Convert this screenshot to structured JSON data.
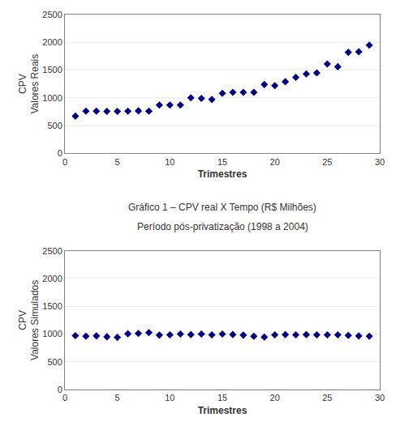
{
  "chart_data": [
    {
      "type": "scatter",
      "x": [
        1,
        2,
        3,
        4,
        5,
        6,
        7,
        8,
        9,
        10,
        11,
        12,
        13,
        14,
        15,
        16,
        17,
        18,
        19,
        20,
        21,
        22,
        23,
        24,
        25,
        26,
        27,
        28,
        29
      ],
      "values": [
        670,
        760,
        760,
        755,
        755,
        760,
        765,
        760,
        870,
        870,
        870,
        1000,
        990,
        970,
        1080,
        1100,
        1100,
        1100,
        1240,
        1220,
        1290,
        1370,
        1430,
        1450,
        1610,
        1560,
        1820,
        1830,
        1950
      ],
      "ylabel": "CPV\nValores Reais",
      "xlabel": "Trimestres",
      "ylim": [
        0,
        2500
      ],
      "yticks": [
        0,
        500,
        1000,
        1500,
        2000,
        2500
      ],
      "xlim": [
        0,
        30
      ],
      "xticks": [
        0,
        5,
        10,
        15,
        20,
        25,
        30
      ],
      "color": "#000080",
      "marker": "diamond",
      "grid": true
    },
    {
      "type": "scatter",
      "title": "Gráfico 1 – CPV real X Tempo (R$ Milhões)",
      "subtitle": "Período pós-privatização (1998 a 2004)",
      "x": [
        1,
        2,
        3,
        4,
        5,
        6,
        7,
        8,
        9,
        10,
        11,
        12,
        13,
        14,
        15,
        16,
        17,
        18,
        19,
        20,
        21,
        22,
        23,
        24,
        25,
        26,
        27,
        28,
        29
      ],
      "values": [
        970,
        960,
        965,
        950,
        940,
        1005,
        1010,
        1025,
        980,
        985,
        1000,
        990,
        1000,
        985,
        1000,
        990,
        980,
        960,
        945,
        985,
        990,
        985,
        990,
        985,
        985,
        985,
        975,
        965,
        960
      ],
      "ylabel": "CPV\nValores Simulados",
      "xlabel": "Trimestres",
      "ylim": [
        0,
        2500
      ],
      "yticks": [
        0,
        500,
        1000,
        1500,
        2000,
        2500
      ],
      "xlim": [
        0,
        30
      ],
      "xticks": [
        0,
        5,
        10,
        15,
        20,
        25,
        30
      ],
      "color": "#000080",
      "marker": "diamond",
      "grid": true
    }
  ]
}
